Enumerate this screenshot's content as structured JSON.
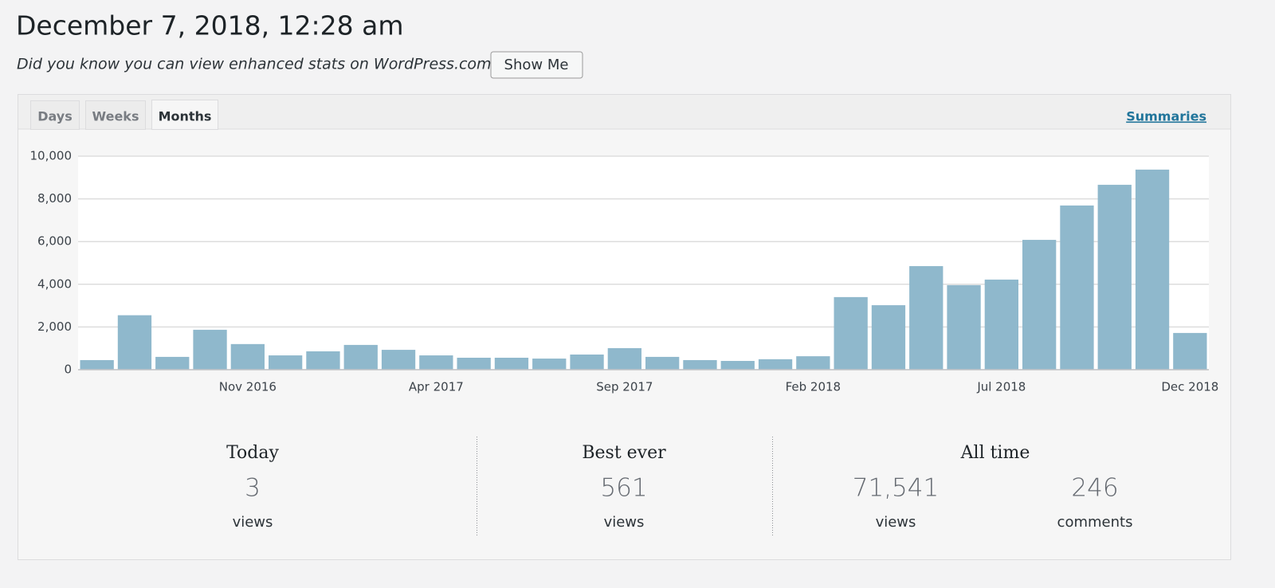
{
  "header": {
    "title": "December 7, 2018, 12:28 am",
    "notice": "Did you know you can view enhanced stats on WordPress.com?",
    "button": "Show Me"
  },
  "tabs": [
    "Days",
    "Weeks",
    "Months"
  ],
  "active_tab": 2,
  "summaries_link": "Summaries",
  "chart_data": {
    "type": "bar",
    "categories": [
      null,
      null,
      null,
      null,
      "Nov 2016",
      null,
      null,
      null,
      null,
      "Apr 2017",
      null,
      null,
      null,
      null,
      "Sep 2017",
      null,
      null,
      null,
      null,
      "Feb 2018",
      null,
      null,
      null,
      null,
      "Jul 2018",
      null,
      null,
      null,
      null,
      "Dec 2018"
    ],
    "values": [
      450,
      2550,
      600,
      1870,
      1200,
      670,
      860,
      1160,
      930,
      670,
      560,
      560,
      520,
      710,
      1010,
      600,
      450,
      410,
      490,
      630,
      3400,
      3020,
      4850,
      3960,
      4220,
      6080,
      7690,
      8660,
      9370,
      1720
    ],
    "color": "#8fb8cc",
    "ylim": [
      0,
      10000
    ],
    "yticks": [
      0,
      {
        "value": 2000,
        "label": "2,000"
      },
      {
        "value": 4000,
        "label": "4,000"
      },
      {
        "value": 6000,
        "label": "6,000"
      },
      {
        "value": 8000,
        "label": "8,000"
      },
      {
        "value": 10000,
        "label": "10,000"
      }
    ],
    "grid": true
  },
  "stats": {
    "today": {
      "label": "Today",
      "value": "3",
      "unit": "views"
    },
    "best_ever": {
      "label": "Best ever",
      "value": "561",
      "unit": "views"
    },
    "all_time": {
      "label": "All time",
      "items": [
        {
          "value": "71,541",
          "unit": "views"
        },
        {
          "value": "246",
          "unit": "comments"
        }
      ]
    }
  }
}
